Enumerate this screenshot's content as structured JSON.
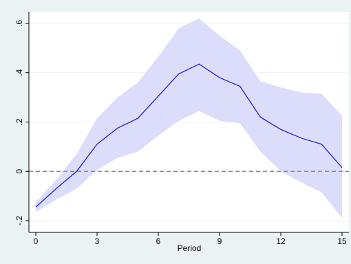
{
  "chart_data": {
    "type": "line",
    "title": "",
    "xlabel": "Period",
    "ylabel": "",
    "xlim": [
      0,
      15
    ],
    "ylim": [
      -0.2,
      0.6
    ],
    "x_ticks": [
      0,
      3,
      6,
      9,
      12,
      15
    ],
    "x_tick_labels": [
      "0",
      "3",
      "6",
      "9",
      "12",
      "15"
    ],
    "y_ticks": [
      -0.2,
      0,
      0.2,
      0.4,
      0.6
    ],
    "y_tick_labels": [
      "-.2",
      "0",
      ".2",
      ".4",
      ".6"
    ],
    "grid": "horizontal",
    "reference_line": {
      "y": 0,
      "style": "dashed",
      "color": "#8c8c8c"
    },
    "x": [
      0,
      1,
      2,
      3,
      4,
      5,
      6,
      7,
      8,
      9,
      10,
      11,
      12,
      13,
      14,
      15
    ],
    "series": [
      {
        "values": [
          -0.145,
          -0.07,
          0.0,
          0.11,
          0.175,
          0.215,
          0.305,
          0.395,
          0.435,
          0.38,
          0.345,
          0.22,
          0.17,
          0.135,
          0.11,
          0.015
        ],
        "color": "#1f1fd6"
      }
    ],
    "confidence_band": {
      "lower": [
        -0.165,
        -0.115,
        -0.07,
        0.005,
        0.055,
        0.08,
        0.145,
        0.205,
        0.245,
        0.205,
        0.195,
        0.08,
        0.0,
        -0.045,
        -0.085,
        -0.19
      ],
      "upper": [
        -0.125,
        -0.035,
        0.07,
        0.215,
        0.3,
        0.36,
        0.465,
        0.58,
        0.62,
        0.55,
        0.49,
        0.365,
        0.34,
        0.32,
        0.315,
        0.225
      ],
      "color": "#dcdcfb"
    }
  }
}
